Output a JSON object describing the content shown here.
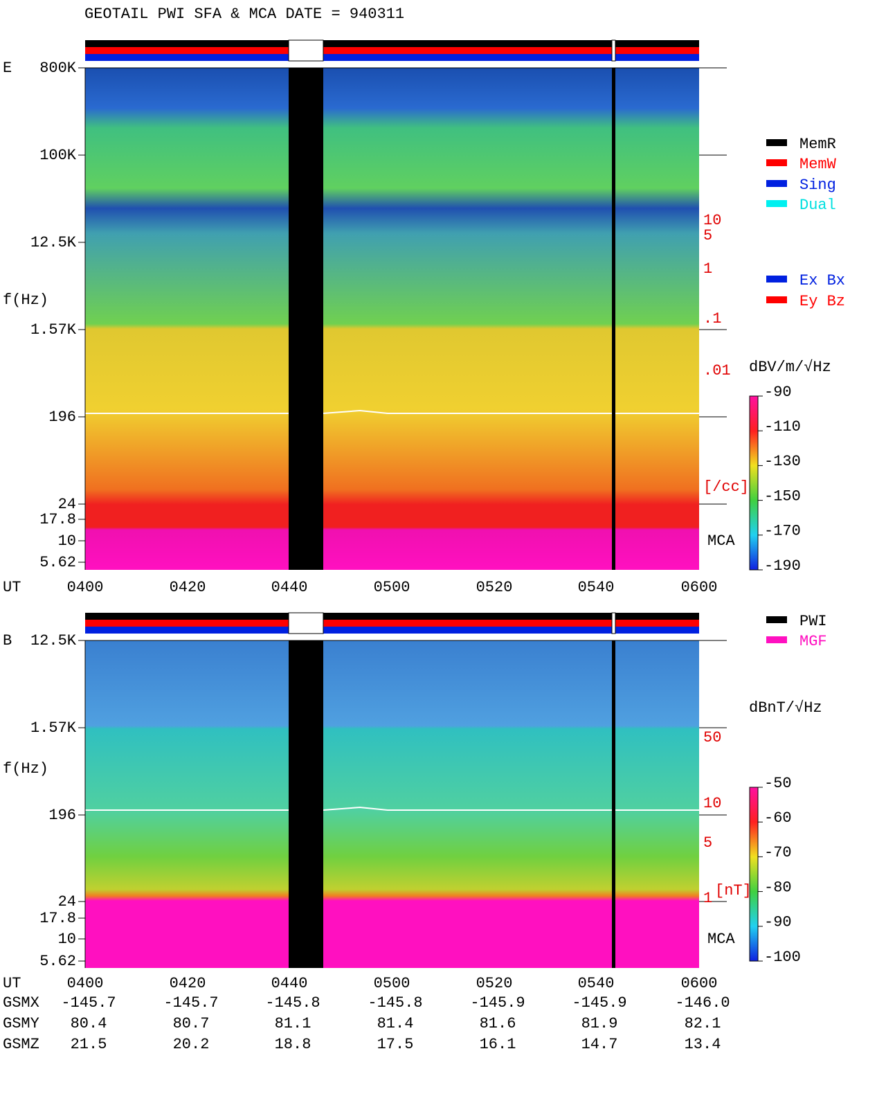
{
  "title": "GEOTAIL  PWI SFA & MCA   DATE = 940311",
  "panels": [
    {
      "label": "E",
      "y_label": "f(Hz)",
      "freq_ticks": [
        "800K",
        "100K",
        "12.5K",
        "1.57K",
        "196",
        "24",
        "17.8",
        "10",
        "5.62"
      ],
      "right_scale": [
        "10",
        "5",
        "1",
        ".1",
        ".01",
        "[/cc]"
      ],
      "mca": "MCA",
      "unit": "dBV/m/√Hz",
      "colorbar_ticks": [
        "-90",
        "-110",
        "-130",
        "-150",
        "-170",
        "-190"
      ]
    },
    {
      "label": "B",
      "y_label": "f(Hz)",
      "freq_ticks": [
        "12.5K",
        "1.57K",
        "196",
        "24",
        "17.8",
        "10",
        "5.62"
      ],
      "right_scale": [
        "50",
        "10",
        "5",
        "1",
        "[nT]"
      ],
      "mca": "MCA",
      "unit": "dBnT/√Hz",
      "colorbar_ticks": [
        "-50",
        "-60",
        "-70",
        "-80",
        "-90",
        "-100"
      ]
    }
  ],
  "legend": {
    "modes": [
      "MemR",
      "MemW",
      "Sing",
      "Dual"
    ],
    "components": [
      "Ex Bx",
      "Ey Bz"
    ],
    "sources": [
      "PWI",
      "MGF"
    ]
  },
  "time_axis": {
    "label": "UT",
    "ticks": [
      "0400",
      "0420",
      "0440",
      "0500",
      "0520",
      "0540",
      "0600"
    ]
  },
  "orbit": [
    {
      "label": "GSMX",
      "values": [
        "-145.7",
        "-145.7",
        "-145.8",
        "-145.8",
        "-145.9",
        "-145.9",
        "-146.0"
      ]
    },
    {
      "label": "GSMY",
      "values": [
        "80.4",
        "80.7",
        "81.1",
        "81.4",
        "81.6",
        "81.9",
        "82.1"
      ]
    },
    {
      "label": "GSMZ",
      "values": [
        "21.5",
        "20.2",
        "18.8",
        "17.5",
        "16.1",
        "14.7",
        "13.4"
      ]
    }
  ]
}
